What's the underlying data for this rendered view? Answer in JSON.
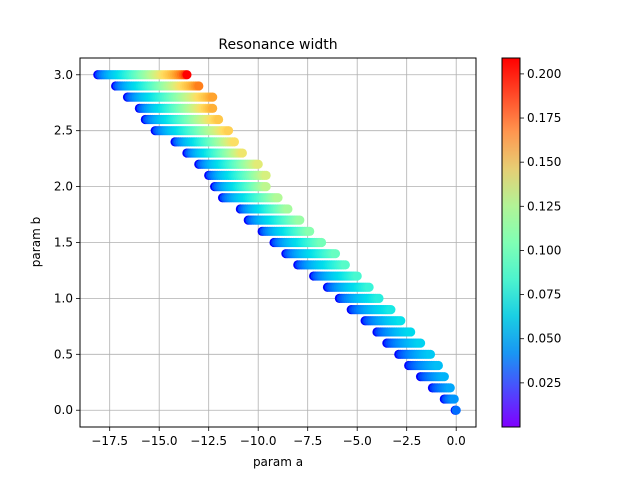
{
  "chart_data": {
    "type": "scatter",
    "title": "Resonance width",
    "xlabel": "param a",
    "ylabel": "param b",
    "xlim": [
      -19.0,
      1.0
    ],
    "ylim": [
      -0.15,
      3.15
    ],
    "xticks": [
      -17.5,
      -15.0,
      -12.5,
      -10.0,
      -7.5,
      -5.0,
      -2.5,
      0.0
    ],
    "xtick_labels": [
      "−17.5",
      "−15.0",
      "−12.5",
      "−10.0",
      "−7.5",
      "−5.0",
      "−2.5",
      "0.0"
    ],
    "yticks": [
      0.0,
      0.5,
      1.0,
      1.5,
      2.0,
      2.5,
      3.0
    ],
    "ytick_labels": [
      "0.0",
      "0.5",
      "1.0",
      "1.5",
      "2.0",
      "2.5",
      "3.0"
    ],
    "grid": true,
    "colormap": "rainbow",
    "colorbar": {
      "range": [
        0.0,
        0.209
      ],
      "ticks": [
        0.025,
        0.05,
        0.075,
        0.1,
        0.125,
        0.15,
        0.175,
        0.2
      ],
      "tick_labels": [
        "0.025",
        "0.050",
        "0.075",
        "0.100",
        "0.125",
        "0.150",
        "0.175",
        "0.200"
      ]
    },
    "series": [
      {
        "b_rows": [
          3.0,
          2.9,
          2.8,
          2.7,
          2.6,
          2.5,
          2.4,
          2.3,
          2.2,
          2.1,
          2.0,
          1.9,
          1.8,
          1.7,
          1.6,
          1.5,
          1.4,
          1.3,
          1.2,
          1.1,
          1.0,
          0.9,
          0.8,
          0.7,
          0.6,
          0.5,
          0.4,
          0.3,
          0.2,
          0.1,
          0.0
        ],
        "a_min": [
          -18.1,
          -17.2,
          -16.6,
          -16.0,
          -15.7,
          -15.2,
          -14.2,
          -13.6,
          -13.0,
          -12.5,
          -12.2,
          -11.8,
          -10.9,
          -10.5,
          -9.8,
          -9.2,
          -8.6,
          -8.0,
          -7.2,
          -6.5,
          -5.9,
          -5.3,
          -4.6,
          -4.0,
          -3.5,
          -2.9,
          -2.4,
          -1.8,
          -1.2,
          -0.6,
          -0.05
        ],
        "a_max": [
          -13.6,
          -13.0,
          -12.3,
          -12.3,
          -12.0,
          -11.5,
          -11.2,
          -10.8,
          -10.0,
          -9.6,
          -9.6,
          -9.0,
          -8.5,
          -7.9,
          -7.4,
          -6.8,
          -6.1,
          -5.6,
          -5.0,
          -4.4,
          -3.9,
          -3.3,
          -2.8,
          -2.3,
          -1.8,
          -1.3,
          -0.9,
          -0.6,
          -0.3,
          -0.1,
          0.0
        ],
        "color_max": [
          0.209,
          0.195,
          0.185,
          0.18,
          0.17,
          0.165,
          0.155,
          0.15,
          0.145,
          0.14,
          0.13,
          0.125,
          0.12,
          0.115,
          0.108,
          0.1,
          0.095,
          0.088,
          0.082,
          0.075,
          0.068,
          0.062,
          0.055,
          0.05,
          0.045,
          0.04,
          0.035,
          0.03,
          0.025,
          0.02,
          0.01
        ]
      }
    ]
  }
}
